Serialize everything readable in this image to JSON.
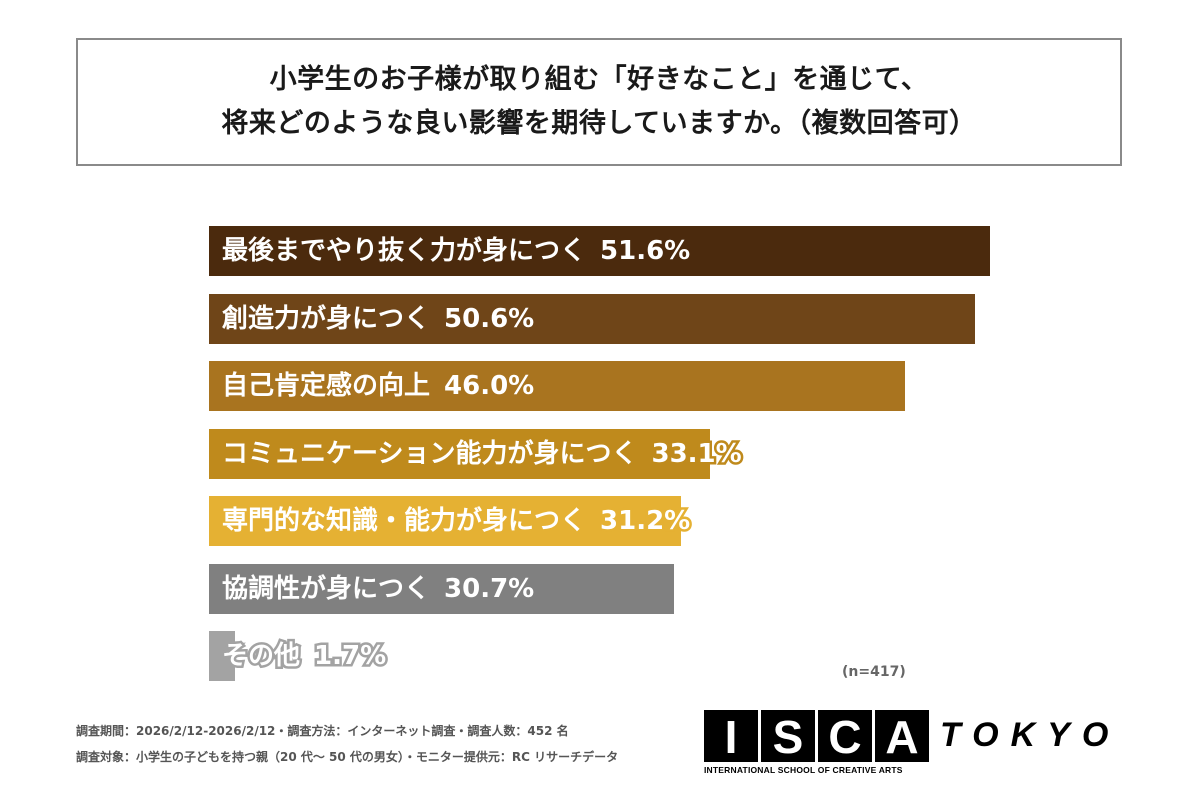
{
  "title": {
    "line1": "小学生のお子様が取り組む「好きなこと」を通じて、",
    "line2": "将来どのような良い影響を期待していますか。（複数回答可）"
  },
  "chart_data": {
    "type": "bar",
    "orientation": "horizontal",
    "title": "小学生のお子様が取り組む「好きなこと」を通じて、将来どのような良い影響を期待していますか。（複数回答可）",
    "categories": [
      "最後までやり抜く力が身につく",
      "創造力が身につく",
      "自己肯定感の向上",
      "コミュニケーション能力が身につく",
      "専門的な知識・能力が身につく",
      "協調性が身につく",
      "その他"
    ],
    "values": [
      51.6,
      50.6,
      46.0,
      33.1,
      31.2,
      30.7,
      1.7
    ],
    "value_labels": [
      "51.6%",
      "50.6%",
      "46.0%",
      "33.1%",
      "31.2%",
      "30.7%",
      "1.7%"
    ],
    "colors": [
      "#4b2a0d",
      "#6f4518",
      "#a9741f",
      "#bf8a1c",
      "#e5b133",
      "#808080",
      "#a3a3a3"
    ],
    "unit": "%",
    "xlim": [
      0,
      51.6
    ],
    "grid": false
  },
  "sample_note": "(n=417)",
  "footer": {
    "line1": "調査期間：2026/2/12-2026/2/12・調査方法：インターネット調査・調査人数：452 名",
    "line2": "調査対象：小学生の子どもを持つ親（20 代～ 50 代の男女）・モニター提供元：RC リサーチデータ"
  },
  "logo": {
    "letters": [
      "I",
      "S",
      "C",
      "A"
    ],
    "tokyo": "TOKYO",
    "subtitle": "INTERNATIONAL SCHOOL OF CREATIVE ARTS"
  }
}
